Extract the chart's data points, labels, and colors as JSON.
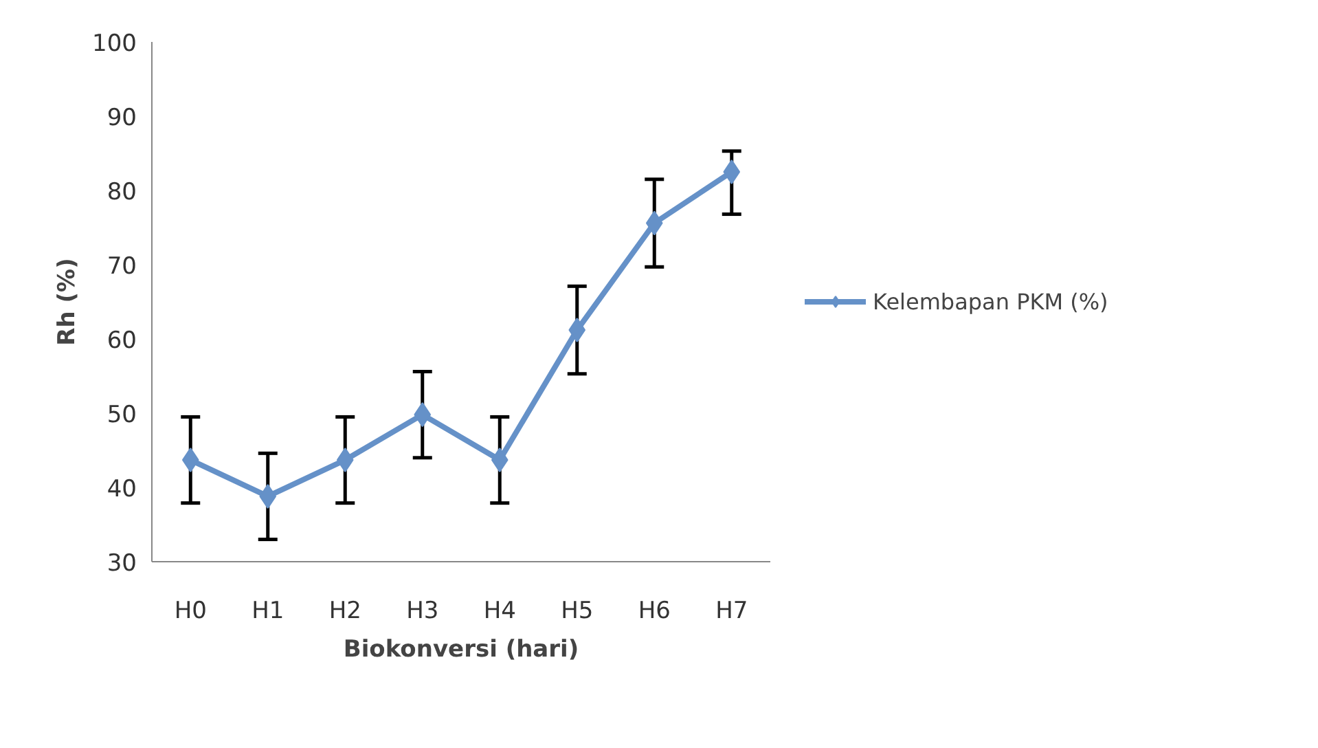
{
  "chart_data": {
    "type": "line",
    "xlabel": "Biokonversi (hari)",
    "ylabel": "Rh (%)",
    "categories": [
      "H0",
      "H1",
      "H2",
      "H3",
      "H4",
      "H5",
      "H6",
      "H7"
    ],
    "series": [
      {
        "name": "Kelembapan PKM (%)",
        "color": "#6591c8",
        "values": [
          43.7,
          38.8,
          43.7,
          49.8,
          43.7,
          61.2,
          75.6,
          82.5
        ],
        "errors": [
          5.8,
          5.8,
          5.8,
          5.8,
          5.8,
          5.9,
          5.9,
          [
            76.8,
            85.3
          ]
        ]
      }
    ],
    "ylim": [
      30,
      100
    ],
    "yticks": [
      30,
      40,
      50,
      60,
      70,
      80,
      90,
      100
    ],
    "grid": false,
    "legend": "right",
    "marker": "diamond",
    "line_style": "solid"
  }
}
